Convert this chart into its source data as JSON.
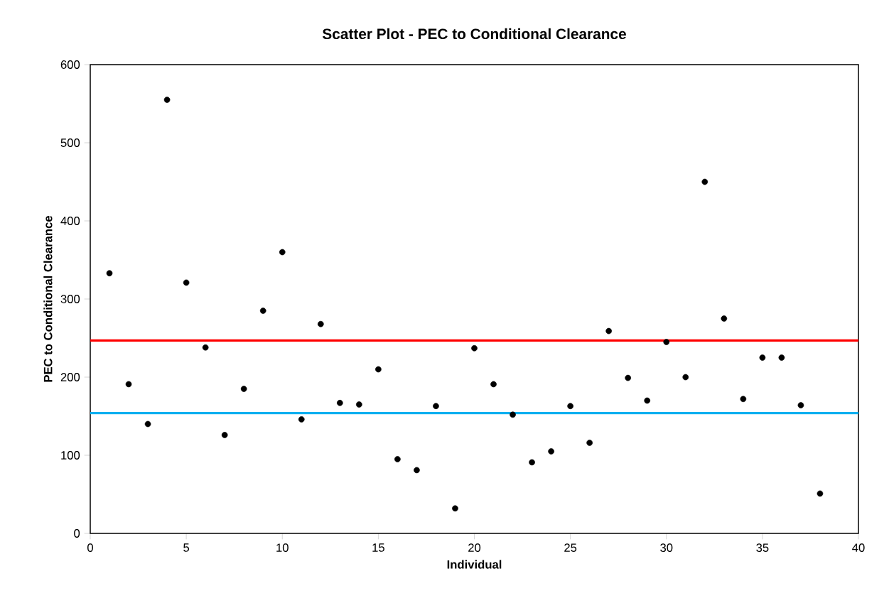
{
  "chart_data": {
    "type": "scatter",
    "title": "Scatter Plot - PEC to Conditional Clearance",
    "xlabel": "Individual",
    "ylabel": "PEC to Conditional  Clearance",
    "x": [
      1,
      2,
      3,
      4,
      5,
      6,
      7,
      8,
      9,
      10,
      11,
      12,
      13,
      14,
      15,
      16,
      17,
      18,
      19,
      20,
      21,
      22,
      23,
      24,
      25,
      26,
      27,
      28,
      29,
      30,
      31,
      32,
      33,
      34,
      35,
      36,
      37,
      38
    ],
    "values": [
      333,
      191,
      140,
      555,
      321,
      238,
      126,
      185,
      285,
      360,
      146,
      268,
      167,
      165,
      210,
      95,
      81,
      163,
      32,
      237,
      191,
      152,
      91,
      105,
      163,
      116,
      259,
      199,
      170,
      245,
      200,
      450,
      275,
      172,
      225,
      225,
      164,
      51
    ],
    "color": "#000000",
    "marker": "circle",
    "xlim": [
      0,
      40
    ],
    "xticks": [
      0,
      5,
      10,
      15,
      20,
      25,
      30,
      35,
      40
    ],
    "ylim": [
      0,
      600
    ],
    "yticks": [
      0,
      100,
      200,
      300,
      400,
      500,
      600
    ],
    "ref_lines": [
      {
        "axis": "y",
        "value": 247,
        "color": "#ff0000"
      },
      {
        "axis": "y",
        "value": 154,
        "color": "#00b0f0"
      }
    ]
  }
}
